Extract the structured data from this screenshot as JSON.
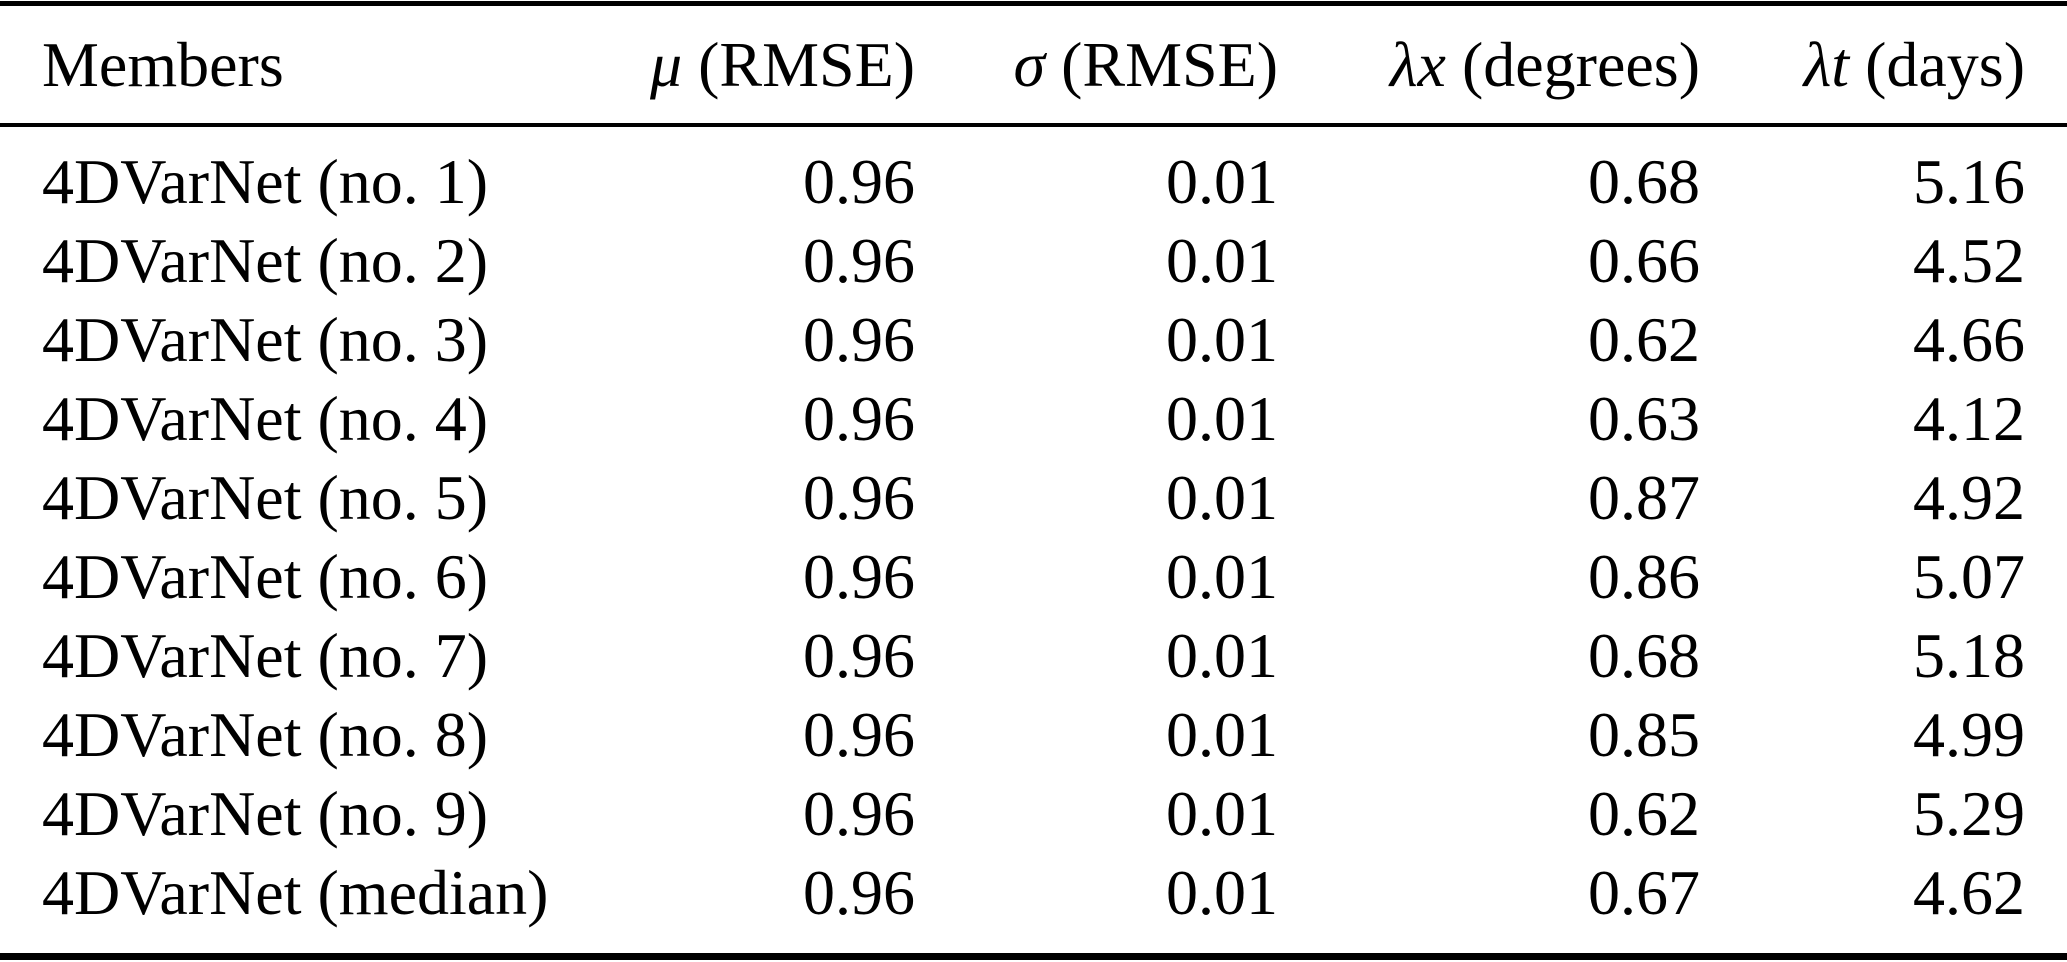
{
  "table": {
    "colors": {
      "text": "#000000",
      "background": "#ffffff",
      "rule": "#000000"
    },
    "headers": [
      {
        "symbol": "",
        "label": "Members"
      },
      {
        "symbol": "μ",
        "label": " (RMSE)"
      },
      {
        "symbol": "σ",
        "label": " (RMSE)"
      },
      {
        "symbol": "λx",
        "label": " (degrees)"
      },
      {
        "symbol": "λt",
        "label": " (days)"
      }
    ],
    "rows": [
      [
        "4DVarNet (no. 1)",
        "0.96",
        "0.01",
        "0.68",
        "5.16"
      ],
      [
        "4DVarNet (no. 2)",
        "0.96",
        "0.01",
        "0.66",
        "4.52"
      ],
      [
        "4DVarNet (no. 3)",
        "0.96",
        "0.01",
        "0.62",
        "4.66"
      ],
      [
        "4DVarNet (no. 4)",
        "0.96",
        "0.01",
        "0.63",
        "4.12"
      ],
      [
        "4DVarNet (no. 5)",
        "0.96",
        "0.01",
        "0.87",
        "4.92"
      ],
      [
        "4DVarNet (no. 6)",
        "0.96",
        "0.01",
        "0.86",
        "5.07"
      ],
      [
        "4DVarNet (no. 7)",
        "0.96",
        "0.01",
        "0.68",
        "5.18"
      ],
      [
        "4DVarNet (no. 8)",
        "0.96",
        "0.01",
        "0.85",
        "4.99"
      ],
      [
        "4DVarNet (no. 9)",
        "0.96",
        "0.01",
        "0.62",
        "5.29"
      ],
      [
        "4DVarNet (median)",
        "0.96",
        "0.01",
        "0.67",
        "4.62"
      ]
    ]
  }
}
